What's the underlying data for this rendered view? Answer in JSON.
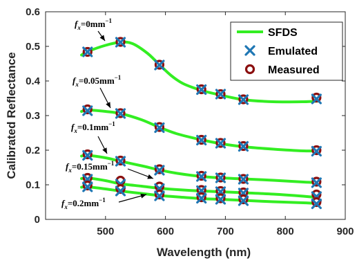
{
  "chart_data": {
    "type": "line",
    "xlabel": "Wavelength (nm)",
    "ylabel": "Calibrated Reflectance",
    "xlim": [
      400,
      900
    ],
    "ylim": [
      0,
      0.6
    ],
    "xticks": [
      500,
      600,
      700,
      800,
      900
    ],
    "yticks": [
      0,
      0.1,
      0.2,
      0.3,
      0.4,
      0.5,
      0.6
    ],
    "legend_position": "top-right",
    "legend": [
      "SFDS",
      "Emulated",
      "Measured"
    ],
    "colors": {
      "sfds": "#33ee22",
      "emulated": "#1f77b4",
      "measured": "#8b0f0f"
    },
    "series": [
      {
        "annotation_var": "f",
        "annotation_sub": "x",
        "annotation_rest": "=0mm",
        "annotation_sup": "−1",
        "curve_x": [
          460,
          470,
          500,
          525,
          545,
          570,
          590,
          610,
          630,
          660,
          690,
          730,
          780,
          830,
          855
        ],
        "curve_y": [
          0.475,
          0.485,
          0.503,
          0.512,
          0.508,
          0.48,
          0.447,
          0.415,
          0.392,
          0.373,
          0.36,
          0.346,
          0.34,
          0.34,
          0.342
        ],
        "points_x": [
          470,
          525,
          590,
          660,
          692,
          730,
          852
        ],
        "emulated": [
          0.484,
          0.512,
          0.446,
          0.375,
          0.362,
          0.346,
          0.348
        ],
        "measured": [
          0.484,
          0.513,
          0.447,
          0.376,
          0.362,
          0.347,
          0.352
        ]
      },
      {
        "annotation_var": "f",
        "annotation_sub": "x",
        "annotation_rest": "=0.05mm",
        "annotation_sup": "−1",
        "curve_x": [
          460,
          470,
          500,
          525,
          560,
          590,
          620,
          660,
          692,
          730,
          780,
          830,
          855
        ],
        "curve_y": [
          0.312,
          0.316,
          0.312,
          0.306,
          0.288,
          0.266,
          0.247,
          0.23,
          0.219,
          0.21,
          0.203,
          0.198,
          0.198
        ],
        "points_x": [
          470,
          525,
          590,
          660,
          692,
          730,
          852
        ],
        "emulated": [
          0.314,
          0.306,
          0.265,
          0.229,
          0.22,
          0.211,
          0.197
        ],
        "measured": [
          0.318,
          0.307,
          0.267,
          0.23,
          0.221,
          0.212,
          0.2
        ]
      },
      {
        "annotation_var": "f",
        "annotation_sub": "x",
        "annotation_rest": "=0.1mm",
        "annotation_sup": "−1",
        "curve_x": [
          460,
          470,
          500,
          525,
          560,
          590,
          620,
          660,
          692,
          730,
          780,
          830,
          855
        ],
        "curve_y": [
          0.183,
          0.185,
          0.178,
          0.168,
          0.155,
          0.143,
          0.133,
          0.124,
          0.12,
          0.117,
          0.113,
          0.108,
          0.106
        ],
        "points_x": [
          470,
          525,
          590,
          660,
          692,
          730,
          852
        ],
        "emulated": [
          0.185,
          0.168,
          0.142,
          0.124,
          0.12,
          0.116,
          0.106
        ],
        "measured": [
          0.188,
          0.17,
          0.145,
          0.126,
          0.121,
          0.117,
          0.109
        ]
      },
      {
        "annotation_var": "f",
        "annotation_sub": "x",
        "annotation_rest": "=0.15mm",
        "annotation_sup": "−1",
        "curve_x": [
          460,
          470,
          500,
          525,
          560,
          590,
          620,
          660,
          692,
          730,
          780,
          830,
          855
        ],
        "curve_y": [
          0.118,
          0.12,
          0.112,
          0.103,
          0.096,
          0.09,
          0.086,
          0.082,
          0.08,
          0.077,
          0.073,
          0.067,
          0.063
        ],
        "points_x": [
          470,
          525,
          590,
          660,
          692,
          730,
          852
        ],
        "emulated": [
          0.116,
          0.102,
          0.089,
          0.083,
          0.08,
          0.076,
          0.066
        ],
        "measured": [
          0.12,
          0.112,
          0.095,
          0.085,
          0.082,
          0.078,
          0.072
        ]
      },
      {
        "annotation_var": "f",
        "annotation_sub": "x",
        "annotation_rest": "=0.2mm",
        "annotation_sup": "−1",
        "curve_x": [
          460,
          470,
          500,
          525,
          560,
          590,
          620,
          660,
          692,
          730,
          780,
          830,
          855
        ],
        "curve_y": [
          0.093,
          0.094,
          0.088,
          0.082,
          0.075,
          0.069,
          0.065,
          0.06,
          0.058,
          0.055,
          0.051,
          0.048,
          0.046
        ],
        "points_x": [
          470,
          525,
          590,
          660,
          692,
          730,
          852
        ],
        "emulated": [
          0.094,
          0.082,
          0.068,
          0.061,
          0.058,
          0.054,
          0.045
        ],
        "measured": [
          0.098,
          0.088,
          0.072,
          0.064,
          0.061,
          0.058,
          0.05
        ]
      }
    ]
  }
}
